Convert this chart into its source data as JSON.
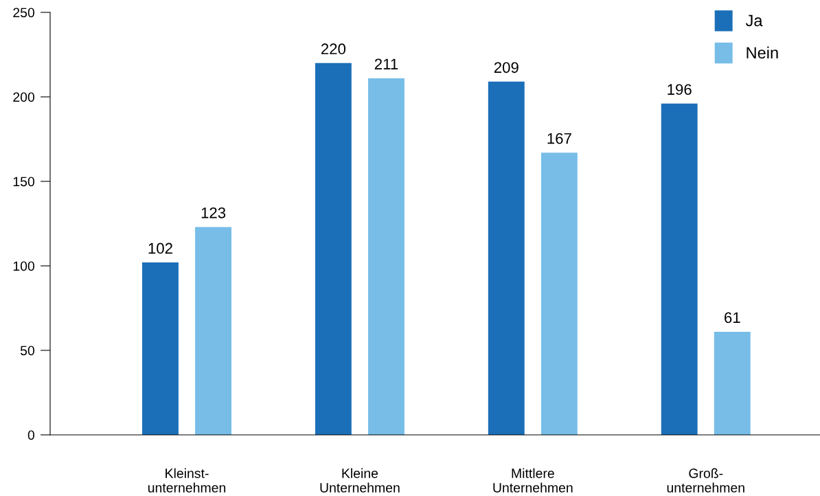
{
  "chart_data": {
    "type": "bar",
    "categories": [
      "Kleinst-\nunternehmen",
      "Kleine\nUnternehmen",
      "Mittlere\nUnternehmen",
      "Groß-\nunternehmen"
    ],
    "series": [
      {
        "name": "Ja",
        "color": "#1b6fb8",
        "values": [
          102,
          220,
          209,
          196
        ]
      },
      {
        "name": "Nein",
        "color": "#77bde8",
        "values": [
          123,
          211,
          167,
          61
        ]
      }
    ],
    "ylim": [
      0,
      250
    ],
    "yticks": [
      0,
      50,
      100,
      150,
      200,
      250
    ],
    "data_labels": true,
    "legend": "top right",
    "grid": false
  }
}
